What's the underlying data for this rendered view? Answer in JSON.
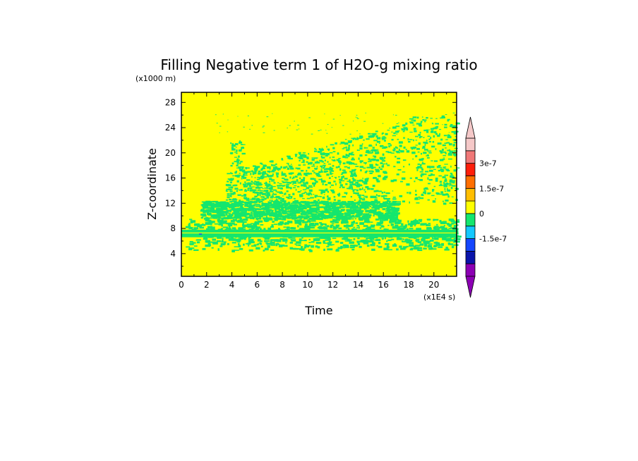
{
  "chart_data": {
    "type": "heatmap",
    "title": "Filling Negative term 1 of H2O-g mixing ratio",
    "ylabel": "Z-coordinate",
    "xlabel": "Time",
    "y_unit": "(x1000 m)",
    "x_unit": "(x1E4 s)",
    "xlim": [
      0,
      21.8
    ],
    "ylim": [
      0.4,
      29.6
    ],
    "x_ticks": [
      "0",
      "2",
      "4",
      "6",
      "8",
      "10",
      "12",
      "14",
      "16",
      "18",
      "20"
    ],
    "y_ticks": [
      "4",
      "8",
      "12",
      "16",
      "20",
      "24",
      "28"
    ],
    "background_value": 0,
    "background_color": "#ffff00",
    "colorbar": {
      "levels": [
        {
          "color": "#8c00b4"
        },
        {
          "color": "#0a14aa"
        },
        {
          "color": "#1446ff"
        },
        {
          "color": "#14c8ff"
        },
        {
          "color": "#14e66e"
        },
        {
          "color": "#ffff00"
        },
        {
          "color": "#ffbe00"
        },
        {
          "color": "#ff6e00"
        },
        {
          "color": "#ff1e0a"
        },
        {
          "color": "#f07878"
        },
        {
          "color": "#f5c8c8"
        }
      ],
      "labels": [
        {
          "text": "3e-7",
          "value": 3e-07
        },
        {
          "text": "1.5e-7",
          "value": 1.5e-07
        },
        {
          "text": "0",
          "value": 0
        },
        {
          "text": "-1.5e-7",
          "value": -1.5e-07
        }
      ],
      "extend": "both",
      "position": "right"
    },
    "bands": [
      {
        "name": "near-zero band",
        "y_range": [
          6.6,
          7.8
        ],
        "color": "#14e66e",
        "x_range": [
          0,
          21.8
        ]
      },
      {
        "name": "patchy activity",
        "y_range": [
          4.5,
          9.5
        ],
        "color": "#14e66e",
        "x_range": [
          0.3,
          21.8
        ]
      },
      {
        "name": "layer ~11 km",
        "y_range": [
          9.5,
          12.5
        ],
        "color": "#14e66e",
        "x_range": [
          1.5,
          17
        ]
      },
      {
        "name": "upper plumes",
        "y_range": [
          12,
          27
        ],
        "color": "#14e66e",
        "x_range": [
          3.5,
          21.8
        ]
      }
    ]
  }
}
